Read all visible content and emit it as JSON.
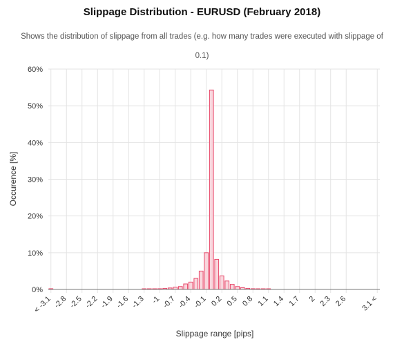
{
  "chart_data": {
    "type": "bar",
    "title": "Slippage Distribution - EURUSD (February 2018)",
    "subtitle": "Shows the distribution of slippage from all trades (e.g. how many trades were executed with slippage of 0.1)",
    "xlabel": "Slippage range [pips]",
    "ylabel": "Occurence [%]",
    "ylim": [
      0,
      60
    ],
    "yticks": [
      "0%",
      "10%",
      "20%",
      "30%",
      "40%",
      "50%",
      "60%"
    ],
    "grid": true,
    "colors": {
      "bar_fill": "#f9d6dd",
      "bar_stroke": "#e8486a",
      "grid": "#e3e3e3",
      "axis": "#777777"
    },
    "categories": [
      "< -3.1",
      "-3.0",
      "-2.9",
      "-2.8",
      "-2.7",
      "-2.6",
      "-2.5",
      "-2.4",
      "-2.3",
      "-2.2",
      "-2.1",
      "-2.0",
      "-1.9",
      "-1.8",
      "-1.7",
      "-1.6",
      "-1.5",
      "-1.4",
      "-1.3",
      "-1.2",
      "-1.1",
      "-1",
      "-0.9",
      "-0.8",
      "-0.7",
      "-0.6",
      "-0.5",
      "-0.4",
      "-0.3",
      "-0.2",
      "-0.1",
      "0",
      "0.1",
      "0.2",
      "0.3",
      "0.4",
      "0.5",
      "0.6",
      "0.7",
      "0.8",
      "0.9",
      "1",
      "1.1",
      "1.2",
      "1.3",
      "1.4",
      "1.5",
      "1.6",
      "1.7",
      "1.8",
      "1.9",
      "2",
      "2.1",
      "2.2",
      "2.3",
      "2.4",
      "2.5",
      "2.6",
      "2.7",
      "2.8",
      "2.9",
      "3.0",
      "3.1",
      "3.1 <"
    ],
    "xtick_labels": [
      {
        "i": 0,
        "label": "< -3.1"
      },
      {
        "i": 3,
        "label": "-2.8"
      },
      {
        "i": 6,
        "label": "-2.5"
      },
      {
        "i": 9,
        "label": "-2.2"
      },
      {
        "i": 12,
        "label": "-1.9"
      },
      {
        "i": 15,
        "label": "-1.6"
      },
      {
        "i": 18,
        "label": "-1.3"
      },
      {
        "i": 21,
        "label": "-1"
      },
      {
        "i": 24,
        "label": "-0.7"
      },
      {
        "i": 27,
        "label": "-0.4"
      },
      {
        "i": 30,
        "label": "-0.1"
      },
      {
        "i": 33,
        "label": "0.2"
      },
      {
        "i": 36,
        "label": "0.5"
      },
      {
        "i": 39,
        "label": "0.8"
      },
      {
        "i": 42,
        "label": "1.1"
      },
      {
        "i": 45,
        "label": "1.4"
      },
      {
        "i": 48,
        "label": "1.7"
      },
      {
        "i": 51,
        "label": "2"
      },
      {
        "i": 54,
        "label": "2.3"
      },
      {
        "i": 57,
        "label": "2.6"
      },
      {
        "i": 63,
        "label": "3.1 <"
      }
    ],
    "values": [
      0.2,
      0,
      0,
      0,
      0,
      0,
      0,
      0,
      0,
      0,
      0,
      0,
      0,
      0,
      0,
      0,
      0,
      0,
      0.1,
      0.1,
      0.1,
      0.2,
      0.3,
      0.4,
      0.6,
      0.8,
      1.5,
      2.0,
      3.0,
      5.0,
      10.0,
      54.3,
      8.2,
      3.7,
      2.3,
      1.4,
      0.8,
      0.5,
      0.3,
      0.2,
      0.1,
      0.1,
      0.1,
      0,
      0,
      0,
      0,
      0,
      0,
      0,
      0,
      0,
      0,
      0,
      0,
      0,
      0,
      0,
      0,
      0,
      0,
      0,
      0,
      0
    ]
  }
}
